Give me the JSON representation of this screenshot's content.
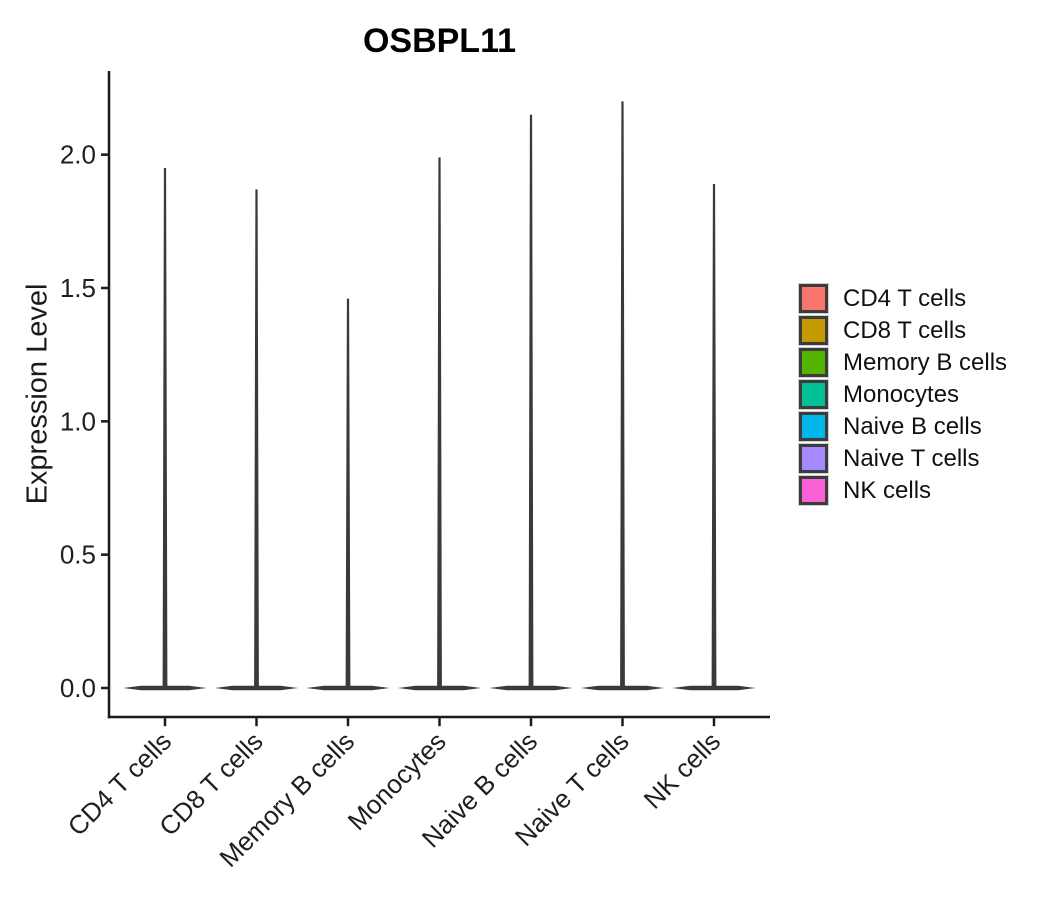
{
  "chart_data": {
    "type": "violin",
    "title": "OSBPL11",
    "ylabel": "Expression Level",
    "xlabel": "",
    "categories": [
      "CD4 T cells",
      "CD8 T cells",
      "Memory B cells",
      "Monocytes",
      "Naive B cells",
      "Naive T cells",
      "NK cells"
    ],
    "series": [
      {
        "name": "CD4 T cells",
        "color": "#F8766D",
        "peak_at": 0.0,
        "max_expression": 1.95
      },
      {
        "name": "CD8 T cells",
        "color": "#C49A00",
        "peak_at": 0.0,
        "max_expression": 1.87
      },
      {
        "name": "Memory B cells",
        "color": "#53B400",
        "peak_at": 0.0,
        "max_expression": 1.46
      },
      {
        "name": "Monocytes",
        "color": "#00C094",
        "peak_at": 0.0,
        "max_expression": 1.99
      },
      {
        "name": "Naive B cells",
        "color": "#00B6EB",
        "peak_at": 0.0,
        "max_expression": 2.15
      },
      {
        "name": "Naive T cells",
        "color": "#A58AFF",
        "peak_at": 0.0,
        "max_expression": 2.2
      },
      {
        "name": "NK cells",
        "color": "#FB61D7",
        "peak_at": 0.0,
        "max_expression": 1.89
      }
    ],
    "yticks": {
      "labels": [
        "0.0",
        "0.5",
        "1.0",
        "1.5",
        "2.0"
      ],
      "values": [
        0.0,
        0.5,
        1.0,
        1.5,
        2.0
      ]
    },
    "ylim": [
      0,
      2.31
    ],
    "grid": false,
    "legend_position": "right",
    "style": {
      "axis_color": "#1a1a1a",
      "tick_label_color": "#1f1f1f",
      "violin_color": "#3a3a3a",
      "background": "#FFFFFF"
    }
  }
}
